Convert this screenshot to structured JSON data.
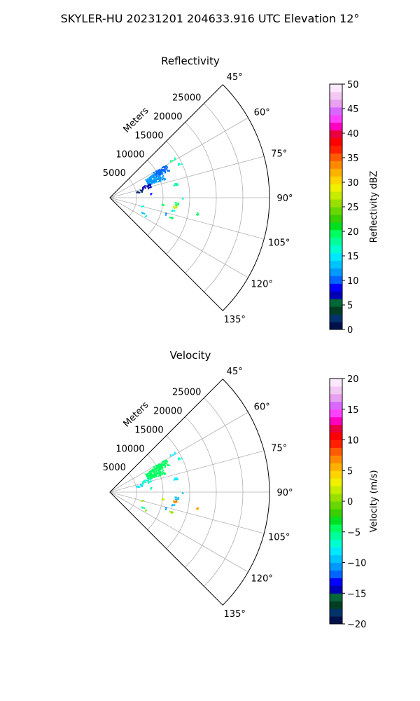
{
  "suptitle": "SKYLER-HU  20231201  204633.916 UTC Elevation 12°",
  "chart_data": [
    {
      "type": "scatter",
      "subtype": "polar-sector-radar",
      "title": "Reflectivity",
      "radial_axis_label": "Meters",
      "radial_ticks": [
        5000,
        10000,
        15000,
        20000,
        25000
      ],
      "radial_tick_labels": [
        "5000",
        "10000",
        "15000",
        "20000",
        "25000"
      ],
      "rlim": [
        0,
        30000
      ],
      "azimuth_range_deg": [
        45,
        135
      ],
      "azimuth_ticks": [
        45,
        60,
        75,
        90,
        105,
        120,
        135
      ],
      "azimuth_tick_labels": [
        "45°",
        "60°",
        "75°",
        "90°",
        "105°",
        "120°",
        "135°"
      ],
      "grid": true,
      "colorbar": {
        "label": "Reflectivity dBZ",
        "range": [
          0,
          50
        ],
        "ticks": [
          0,
          5,
          10,
          15,
          20,
          25,
          30,
          35,
          40,
          45,
          50
        ],
        "tick_labels": [
          "0",
          "5",
          "10",
          "15",
          "20",
          "25",
          "30",
          "35",
          "40",
          "45",
          "50"
        ],
        "colors": [
          "#00104a",
          "#02336b",
          "#023e23",
          "#02683a",
          "#0000b4",
          "#0000ff",
          "#0066ff",
          "#0099ff",
          "#00c4ff",
          "#00e8ff",
          "#00ffd0",
          "#00ff9a",
          "#00ff60",
          "#00e020",
          "#3ad000",
          "#66d800",
          "#99e000",
          "#c8ec00",
          "#f0f000",
          "#ffd400",
          "#ffb000",
          "#ff8a00",
          "#ff5a00",
          "#ff2000",
          "#ff0000",
          "#e80040",
          "#ff00c0",
          "#ff40ff",
          "#d868ff",
          "#e8a0f0",
          "#f4c8f4",
          "#fde8fd"
        ]
      },
      "clusters": [
        {
          "az": 66,
          "r": 9200,
          "daz": 5,
          "dr": 1700,
          "n": 160,
          "value": 12
        },
        {
          "az": 62,
          "r": 10800,
          "daz": 3,
          "dr": 1400,
          "n": 70,
          "value": 10
        },
        {
          "az": 73,
          "r": 7000,
          "daz": 3,
          "dr": 900,
          "n": 25,
          "value": 7
        },
        {
          "az": 77,
          "r": 5600,
          "daz": 2,
          "dr": 600,
          "n": 14,
          "value": 3
        },
        {
          "az": 58,
          "r": 13800,
          "daz": 1,
          "dr": 600,
          "n": 6,
          "value": 18
        },
        {
          "az": 64,
          "r": 14500,
          "daz": 1,
          "dr": 500,
          "n": 5,
          "value": 16
        },
        {
          "az": 78,
          "r": 12600,
          "daz": 1,
          "dr": 500,
          "n": 8,
          "value": 18
        },
        {
          "az": 95,
          "r": 12500,
          "daz": 1.2,
          "dr": 350,
          "n": 10,
          "value": 19
        },
        {
          "az": 98,
          "r": 12300,
          "daz": 1,
          "dr": 350,
          "n": 10,
          "value": 27
        },
        {
          "az": 101,
          "r": 12000,
          "daz": 1,
          "dr": 300,
          "n": 6,
          "value": 17
        },
        {
          "az": 97,
          "r": 9900,
          "daz": 1,
          "dr": 250,
          "n": 4,
          "value": 19
        },
        {
          "az": 108,
          "r": 12000,
          "daz": 1,
          "dr": 300,
          "n": 5,
          "value": 19
        },
        {
          "az": 106,
          "r": 11000,
          "daz": 1,
          "dr": 300,
          "n": 3,
          "value": 12
        },
        {
          "az": 100,
          "r": 16500,
          "daz": 0.8,
          "dr": 250,
          "n": 4,
          "value": 20
        },
        {
          "az": 104,
          "r": 6200,
          "daz": 1,
          "dr": 200,
          "n": 3,
          "value": 17
        },
        {
          "az": 114,
          "r": 6700,
          "daz": 1,
          "dr": 300,
          "n": 5,
          "value": 14
        },
        {
          "az": 117,
          "r": 7500,
          "daz": 1,
          "dr": 200,
          "n": 2,
          "value": 16
        },
        {
          "az": 90,
          "r": 13500,
          "daz": 0.5,
          "dr": 150,
          "n": 2,
          "value": 17
        },
        {
          "az": 84,
          "r": 7500,
          "daz": 1,
          "dr": 300,
          "n": 3,
          "value": 9
        }
      ]
    },
    {
      "type": "scatter",
      "subtype": "polar-sector-radar",
      "title": "Velocity",
      "radial_axis_label": "Meters",
      "radial_ticks": [
        5000,
        10000,
        15000,
        20000,
        25000
      ],
      "radial_tick_labels": [
        "5000",
        "10000",
        "15000",
        "20000",
        "25000"
      ],
      "rlim": [
        0,
        30000
      ],
      "azimuth_range_deg": [
        45,
        135
      ],
      "azimuth_ticks": [
        45,
        60,
        75,
        90,
        105,
        120,
        135
      ],
      "azimuth_tick_labels": [
        "45°",
        "60°",
        "75°",
        "90°",
        "105°",
        "120°",
        "135°"
      ],
      "grid": true,
      "colorbar": {
        "label": "Velocity (m/s)",
        "range": [
          -20,
          20
        ],
        "ticks": [
          -20,
          -15,
          -10,
          -5,
          0,
          5,
          10,
          15,
          20
        ],
        "tick_labels": [
          "−20",
          "−15",
          "−10",
          "−5",
          "0",
          "5",
          "10",
          "15",
          "20"
        ],
        "colors": [
          "#00104a",
          "#02336b",
          "#023e23",
          "#02683a",
          "#0000b4",
          "#0000ff",
          "#0066ff",
          "#0099ff",
          "#00c4ff",
          "#00e8ff",
          "#00ffd0",
          "#00ff9a",
          "#00ff60",
          "#00e020",
          "#3ad000",
          "#66d800",
          "#99e000",
          "#c8ec00",
          "#f0f000",
          "#ffd400",
          "#ffb000",
          "#ff8a00",
          "#ff5a00",
          "#ff2000",
          "#ff0000",
          "#e80040",
          "#ff00c0",
          "#ff40ff",
          "#d868ff",
          "#e8a0f0",
          "#f4c8f4",
          "#fde8fd"
        ]
      },
      "clusters": [
        {
          "az": 66,
          "r": 9200,
          "daz": 5,
          "dr": 1700,
          "n": 160,
          "value": -4
        },
        {
          "az": 62,
          "r": 10800,
          "daz": 3,
          "dr": 1400,
          "n": 70,
          "value": -5
        },
        {
          "az": 73,
          "r": 7000,
          "daz": 3,
          "dr": 900,
          "n": 25,
          "value": -7
        },
        {
          "az": 77,
          "r": 5600,
          "daz": 2,
          "dr": 600,
          "n": 14,
          "value": -8
        },
        {
          "az": 58,
          "r": 13800,
          "daz": 1,
          "dr": 600,
          "n": 6,
          "value": -8
        },
        {
          "az": 64,
          "r": 14500,
          "daz": 1,
          "dr": 500,
          "n": 5,
          "value": -7
        },
        {
          "az": 78,
          "r": 12600,
          "daz": 1,
          "dr": 500,
          "n": 8,
          "value": -8
        },
        {
          "az": 95,
          "r": 12500,
          "daz": 1.2,
          "dr": 350,
          "n": 10,
          "value": -10
        },
        {
          "az": 98,
          "r": 12300,
          "daz": 1,
          "dr": 350,
          "n": 10,
          "value": 7
        },
        {
          "az": 101,
          "r": 12000,
          "daz": 1,
          "dr": 300,
          "n": 6,
          "value": -9
        },
        {
          "az": 97,
          "r": 9900,
          "daz": 1,
          "dr": 250,
          "n": 4,
          "value": 2
        },
        {
          "az": 108,
          "r": 12000,
          "daz": 1,
          "dr": 300,
          "n": 5,
          "value": 1
        },
        {
          "az": 106,
          "r": 11000,
          "daz": 1,
          "dr": 300,
          "n": 3,
          "value": -11
        },
        {
          "az": 100,
          "r": 16500,
          "daz": 0.8,
          "dr": 250,
          "n": 4,
          "value": 5
        },
        {
          "az": 104,
          "r": 6200,
          "daz": 1,
          "dr": 200,
          "n": 3,
          "value": 1
        },
        {
          "az": 114,
          "r": 6700,
          "daz": 1,
          "dr": 300,
          "n": 5,
          "value": -6
        },
        {
          "az": 117,
          "r": 7500,
          "daz": 1,
          "dr": 200,
          "n": 2,
          "value": 1
        },
        {
          "az": 90,
          "r": 13500,
          "daz": 0.5,
          "dr": 150,
          "n": 2,
          "value": -9
        },
        {
          "az": 84,
          "r": 7500,
          "daz": 1,
          "dr": 300,
          "n": 3,
          "value": -6
        }
      ]
    }
  ]
}
